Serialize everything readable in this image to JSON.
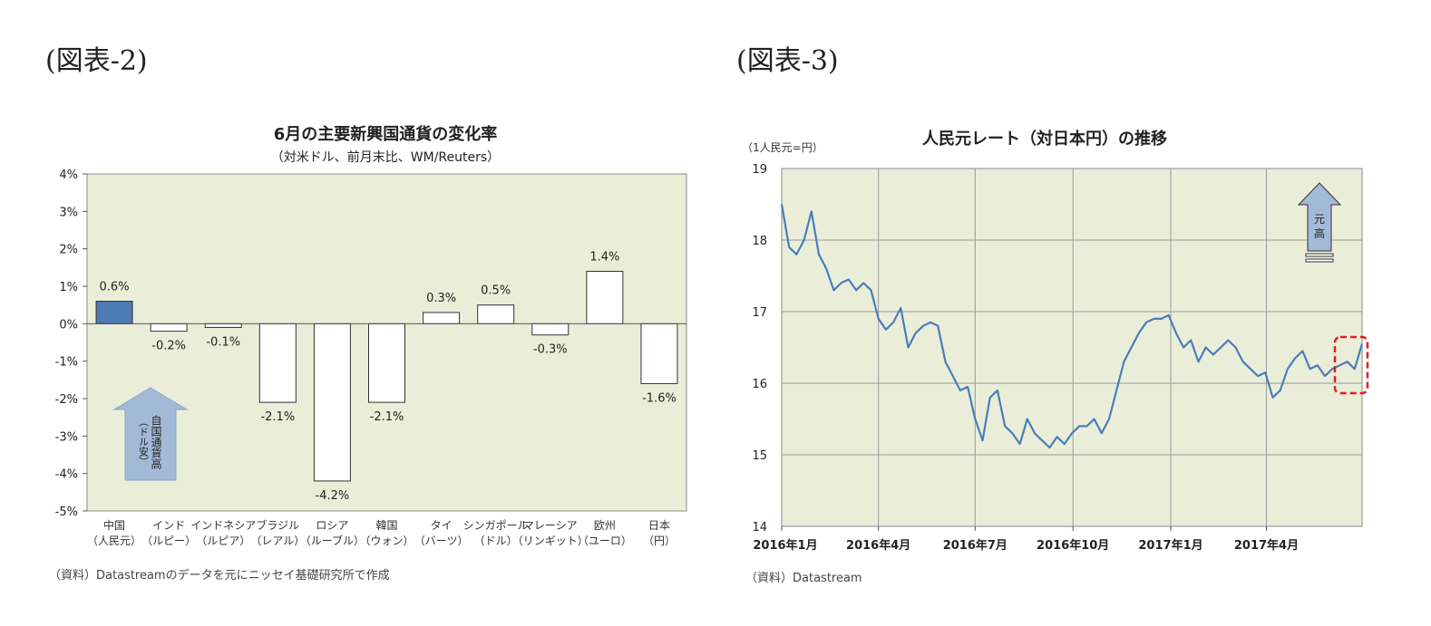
{
  "fig2_label": "(図表-2)",
  "fig3_label": "(図表-3)",
  "chart_data": [
    {
      "type": "bar",
      "title": "6月の主要新興国通貨の変化率",
      "subtitle": "（対米ドル、前月末比、WM/Reuters）",
      "categories": [
        [
          "中国",
          "（人民元）"
        ],
        [
          "インド",
          "（ルピー）"
        ],
        [
          "インドネシア",
          "（ルピア）"
        ],
        [
          "ブラジル",
          "（レアル）"
        ],
        [
          "ロシア",
          "（ルーブル）"
        ],
        [
          "韓国",
          "（ウォン）"
        ],
        [
          "タイ",
          "（バーツ）"
        ],
        [
          "シンガポール",
          "（ドル）"
        ],
        [
          "マレーシア",
          "（リンギット）"
        ],
        [
          "欧州",
          "（ユーロ）"
        ],
        [
          "日本",
          "（円）"
        ]
      ],
      "values": [
        0.6,
        -0.2,
        -0.1,
        -2.1,
        -4.2,
        -2.1,
        0.3,
        0.5,
        -0.3,
        1.4,
        -1.6
      ],
      "data_labels": [
        "0.6%",
        "-0.2%",
        "-0.1%",
        "-2.1%",
        "-4.2%",
        "-2.1%",
        "0.3%",
        "0.5%",
        "-0.3%",
        "1.4%",
        "-1.6%"
      ],
      "highlight_index": 0,
      "ylim": [
        -5,
        4
      ],
      "yticks": [
        "4%",
        "3%",
        "2%",
        "1%",
        "0%",
        "-1%",
        "-2%",
        "-3%",
        "-4%",
        "-5%"
      ],
      "annotation": "自国通貨高（ドル安）",
      "grid": false,
      "colors": {
        "plot_bg": "#eaeed9",
        "highlight": "#4e7ab5",
        "bar": "#ffffff",
        "arrow": "#a3bad6"
      }
    },
    {
      "type": "line",
      "title": "人民元レート（対日本円）の推移",
      "ylabel": "（1人民元=円）",
      "ylim": [
        14,
        19
      ],
      "yticks": [
        "19",
        "18",
        "17",
        "16",
        "15",
        "14"
      ],
      "xticks": [
        "2016年1月",
        "2016年4月",
        "2016年7月",
        "2016年10月",
        "2017年1月",
        "2017年4月"
      ],
      "xlim": [
        "2016-01",
        "2017-06-30"
      ],
      "annotation": "元高",
      "grid": true,
      "colors": {
        "plot_bg": "#eaeed9",
        "line": "#4a7ebb",
        "highlight_box": "#e02020"
      },
      "series": [
        {
          "x": [
            "2016-01-01",
            "2016-01-08",
            "2016-01-15",
            "2016-01-22",
            "2016-01-29",
            "2016-02-05",
            "2016-02-12",
            "2016-02-19",
            "2016-02-26",
            "2016-03-04",
            "2016-03-11",
            "2016-03-18",
            "2016-03-25",
            "2016-04-01",
            "2016-04-08",
            "2016-04-15",
            "2016-04-22",
            "2016-04-29",
            "2016-05-06",
            "2016-05-13",
            "2016-05-20",
            "2016-05-27",
            "2016-06-03",
            "2016-06-10",
            "2016-06-17",
            "2016-06-24",
            "2016-07-01",
            "2016-07-08",
            "2016-07-15",
            "2016-07-22",
            "2016-07-29",
            "2016-08-05",
            "2016-08-12",
            "2016-08-19",
            "2016-08-26",
            "2016-09-02",
            "2016-09-09",
            "2016-09-16",
            "2016-09-23",
            "2016-09-30",
            "2016-10-07",
            "2016-10-14",
            "2016-10-21",
            "2016-10-28",
            "2016-11-04",
            "2016-11-11",
            "2016-11-18",
            "2016-11-25",
            "2016-12-02",
            "2016-12-09",
            "2016-12-16",
            "2016-12-23",
            "2016-12-30",
            "2017-01-06",
            "2017-01-13",
            "2017-01-20",
            "2017-01-27",
            "2017-02-03",
            "2017-02-10",
            "2017-02-17",
            "2017-02-24",
            "2017-03-03",
            "2017-03-10",
            "2017-03-17",
            "2017-03-24",
            "2017-03-31",
            "2017-04-07",
            "2017-04-14",
            "2017-04-21",
            "2017-04-28",
            "2017-05-05",
            "2017-05-12",
            "2017-05-19",
            "2017-05-26",
            "2017-06-02",
            "2017-06-09",
            "2017-06-16",
            "2017-06-23",
            "2017-06-30"
          ],
          "values": [
            18.5,
            17.9,
            17.8,
            18.0,
            18.4,
            17.8,
            17.6,
            17.3,
            17.4,
            17.45,
            17.3,
            17.4,
            17.3,
            16.9,
            16.75,
            16.85,
            17.05,
            16.5,
            16.7,
            16.8,
            16.85,
            16.8,
            16.3,
            16.1,
            15.9,
            15.95,
            15.5,
            15.2,
            15.8,
            15.9,
            15.4,
            15.3,
            15.15,
            15.5,
            15.3,
            15.2,
            15.1,
            15.25,
            15.15,
            15.3,
            15.4,
            15.4,
            15.5,
            15.3,
            15.5,
            15.9,
            16.3,
            16.5,
            16.7,
            16.85,
            16.9,
            16.9,
            16.95,
            16.7,
            16.5,
            16.6,
            16.3,
            16.5,
            16.4,
            16.5,
            16.6,
            16.5,
            16.3,
            16.2,
            16.1,
            16.15,
            15.8,
            15.9,
            16.2,
            16.35,
            16.45,
            16.2,
            16.25,
            16.1,
            16.2,
            16.25,
            16.3,
            16.2,
            16.55
          ]
        }
      ]
    }
  ],
  "footnote_fig2": "（資料）Datastreamのデータを元にニッセイ基礎研究所で作成",
  "footnote_fig3": "（資料）Datastream"
}
